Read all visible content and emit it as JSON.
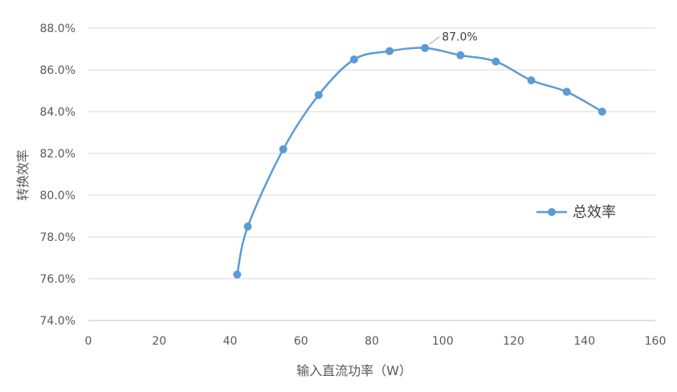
{
  "chart_data": {
    "type": "line",
    "title": "",
    "xlabel": "输入直流功率（W）",
    "ylabel": "转换效率",
    "xlim": [
      0,
      160
    ],
    "ylim": [
      74.0,
      88.0
    ],
    "x_ticks": [
      0,
      20,
      40,
      60,
      80,
      100,
      120,
      140,
      160
    ],
    "y_ticks": [
      74.0,
      76.0,
      78.0,
      80.0,
      82.0,
      84.0,
      86.0,
      88.0
    ],
    "y_tick_labels": [
      "74.0%",
      "76.0%",
      "78.0%",
      "80.0%",
      "82.0%",
      "84.0%",
      "86.0%",
      "88.0%"
    ],
    "grid": true,
    "legend_position": "right",
    "series": [
      {
        "name": "总效率",
        "color": "#5b9bd5",
        "smooth": true,
        "x": [
          42,
          45,
          55,
          65,
          75,
          85,
          95,
          105,
          115,
          125,
          135,
          145
        ],
        "y": [
          76.2,
          78.5,
          82.2,
          84.8,
          86.5,
          86.9,
          87.05,
          86.7,
          86.4,
          85.5,
          84.95,
          84.0
        ]
      }
    ],
    "annotations": [
      {
        "text": "87.0%",
        "x": 95,
        "y": 87.05
      }
    ]
  }
}
